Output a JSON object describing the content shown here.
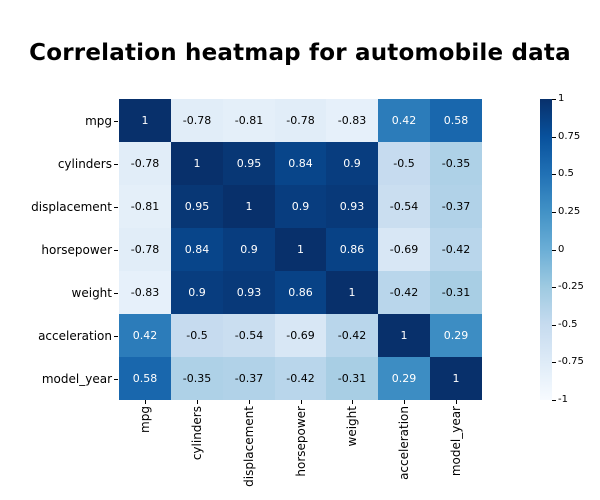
{
  "title": "Correlation heatmap for automobile data",
  "chart_data": {
    "type": "heatmap",
    "title": "Correlation heatmap for automobile data",
    "xlabel": "",
    "ylabel": "",
    "categories": [
      "mpg",
      "cylinders",
      "displacement",
      "horsepower",
      "weight",
      "acceleration",
      "model_year"
    ],
    "matrix": [
      [
        1,
        -0.78,
        -0.81,
        -0.78,
        -0.83,
        0.42,
        0.58
      ],
      [
        -0.78,
        1,
        0.95,
        0.84,
        0.9,
        -0.5,
        -0.35
      ],
      [
        -0.81,
        0.95,
        1,
        0.9,
        0.93,
        -0.54,
        -0.37
      ],
      [
        -0.78,
        0.84,
        0.9,
        1,
        0.86,
        -0.69,
        -0.42
      ],
      [
        -0.83,
        0.9,
        0.93,
        0.86,
        1,
        -0.42,
        -0.31
      ],
      [
        0.42,
        -0.5,
        -0.54,
        -0.69,
        -0.42,
        1,
        0.29
      ],
      [
        0.58,
        -0.35,
        -0.37,
        -0.42,
        -0.31,
        0.29,
        1
      ]
    ],
    "vmin": -1,
    "vmax": 1,
    "annotated": true,
    "grid": false,
    "colormap": "Blues",
    "colormap_stops": [
      "#f7fbff",
      "#deebf7",
      "#c6dbef",
      "#9ecae1",
      "#6baed6",
      "#4292c6",
      "#2171b5",
      "#08519c",
      "#08306b"
    ],
    "annotation_text_colors": {
      "on_dark": "#ffffff",
      "on_light": "#000000"
    },
    "colorbar": {
      "position": "right",
      "tick_labels": [
        "1",
        "0.75",
        "0.5",
        "0.25",
        "0",
        "-0.25",
        "-0.5",
        "-0.75",
        "-1"
      ]
    }
  }
}
